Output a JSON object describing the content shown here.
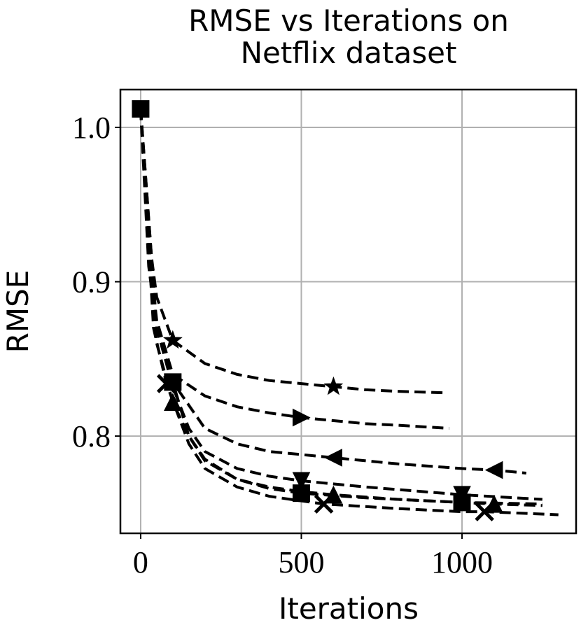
{
  "chart_data": {
    "type": "line",
    "title": "RMSE vs Iterations on Netflix dataset",
    "xlabel": "Iterations",
    "ylabel": "RMSE",
    "xlim": [
      -63,
      1355
    ],
    "ylim": [
      0.737,
      1.0245
    ],
    "xticks": [
      0,
      500,
      1000
    ],
    "yticks": [
      {
        "value": 0.8,
        "label": "0.8"
      },
      {
        "value": 0.9,
        "label": "0.9"
      },
      {
        "value": 1.0,
        "label": "1.0"
      }
    ],
    "grid": true,
    "series": [
      {
        "color": "#000000",
        "marker": "star",
        "markevery": [
          3,
          8
        ],
        "x": [
          0,
          25,
          50,
          100,
          200,
          300,
          400,
          500,
          600,
          700,
          800,
          950
        ],
        "values": [
          1.012,
          0.93,
          0.89,
          0.862,
          0.847,
          0.84,
          0.836,
          0.834,
          0.832,
          0.83,
          0.829,
          0.828
        ]
      },
      {
        "color": "#000000",
        "marker": "triangle-right",
        "markevery": [
          7
        ],
        "x": [
          0,
          25,
          50,
          100,
          200,
          300,
          400,
          500,
          600,
          700,
          800,
          960
        ],
        "values": [
          1.012,
          0.92,
          0.875,
          0.84,
          0.826,
          0.819,
          0.815,
          0.812,
          0.81,
          0.808,
          0.807,
          0.805
        ]
      },
      {
        "color": "#000000",
        "marker": "triangle-left",
        "markevery": [
          8,
          11
        ],
        "x": [
          0,
          25,
          50,
          100,
          200,
          300,
          400,
          500,
          600,
          800,
          1000,
          1100,
          1200
        ],
        "values": [
          1.012,
          0.91,
          0.87,
          0.835,
          0.805,
          0.795,
          0.79,
          0.788,
          0.786,
          0.782,
          0.779,
          0.778,
          0.776
        ]
      },
      {
        "color": "#000000",
        "marker": "square",
        "markevery": [
          0,
          2,
          7,
          9
        ],
        "x": [
          0,
          50,
          100,
          150,
          200,
          300,
          400,
          500,
          700,
          1000,
          1250
        ],
        "values": [
          1.012,
          0.87,
          0.835,
          0.8,
          0.785,
          0.772,
          0.766,
          0.763,
          0.76,
          0.757,
          0.756
        ]
      },
      {
        "color": "#000000",
        "marker": "triangle-down",
        "markevery": [
          7,
          9
        ],
        "x": [
          0,
          50,
          100,
          150,
          200,
          300,
          400,
          500,
          700,
          1000,
          1250
        ],
        "values": [
          1.012,
          0.87,
          0.832,
          0.805,
          0.79,
          0.779,
          0.774,
          0.771,
          0.767,
          0.762,
          0.759
        ]
      },
      {
        "color": "#000000",
        "marker": "triangle-up",
        "markevery": [
          2,
          8,
          11
        ],
        "x": [
          0,
          50,
          100,
          150,
          200,
          300,
          400,
          500,
          600,
          800,
          1000,
          1100,
          1250
        ],
        "values": [
          1.012,
          0.86,
          0.822,
          0.8,
          0.784,
          0.772,
          0.767,
          0.764,
          0.762,
          0.759,
          0.757,
          0.756,
          0.755
        ]
      },
      {
        "color": "#000000",
        "marker": "x",
        "markevery": [
          2,
          8,
          11
        ],
        "x": [
          0,
          40,
          80,
          150,
          200,
          300,
          400,
          500,
          570,
          800,
          1000,
          1070,
          1300
        ],
        "values": [
          1.012,
          0.87,
          0.834,
          0.795,
          0.779,
          0.767,
          0.761,
          0.758,
          0.756,
          0.753,
          0.751,
          0.751,
          0.749
        ]
      }
    ]
  }
}
